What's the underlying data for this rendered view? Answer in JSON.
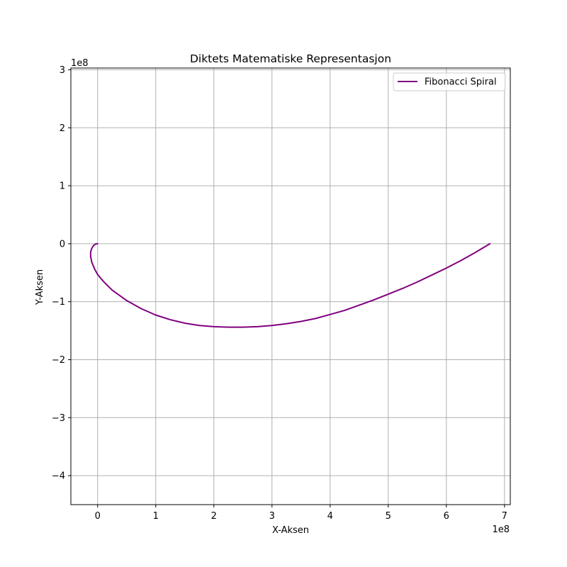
{
  "chart_data": {
    "type": "line",
    "title": "Diktets Matematiske Representasjon",
    "xlabel": "X-Aksen",
    "ylabel": "Y-Aksen",
    "x_offset_label": "1e8",
    "y_offset_label": "1e8",
    "xlim": [
      -0.46,
      7.1
    ],
    "ylim": [
      -4.5,
      3.03
    ],
    "x_ticks": [
      0,
      1,
      2,
      3,
      4,
      5,
      6,
      7
    ],
    "x_tick_labels": [
      "0",
      "1",
      "2",
      "3",
      "4",
      "5",
      "6",
      "7"
    ],
    "y_ticks": [
      -4,
      -3,
      -2,
      -1,
      0,
      1,
      2,
      3
    ],
    "y_tick_labels": [
      "−4",
      "−3",
      "−2",
      "−1",
      "0",
      "1",
      "2",
      "3"
    ],
    "grid": true,
    "legend_position": "top-right",
    "series": [
      {
        "name": "Fibonacci Spiral",
        "color": "#800080",
        "points": [
          [
            0.0,
            0.0
          ],
          [
            -0.02,
            0.0
          ],
          [
            -0.04,
            -0.01
          ],
          [
            -0.07,
            -0.03
          ],
          [
            -0.1,
            -0.08
          ],
          [
            -0.12,
            -0.14
          ],
          [
            -0.12,
            -0.22
          ],
          [
            -0.1,
            -0.32
          ],
          [
            -0.05,
            -0.44
          ],
          [
            0.0,
            -0.53
          ],
          [
            0.1,
            -0.65
          ],
          [
            0.25,
            -0.8
          ],
          [
            0.5,
            -0.98
          ],
          [
            0.75,
            -1.12
          ],
          [
            1.0,
            -1.23
          ],
          [
            1.25,
            -1.31
          ],
          [
            1.5,
            -1.37
          ],
          [
            1.75,
            -1.41
          ],
          [
            2.0,
            -1.43
          ],
          [
            2.25,
            -1.44
          ],
          [
            2.5,
            -1.44
          ],
          [
            2.75,
            -1.43
          ],
          [
            3.0,
            -1.41
          ],
          [
            3.25,
            -1.38
          ],
          [
            3.5,
            -1.34
          ],
          [
            3.75,
            -1.29
          ],
          [
            4.0,
            -1.22
          ],
          [
            4.25,
            -1.15
          ],
          [
            4.5,
            -1.06
          ],
          [
            4.75,
            -0.97
          ],
          [
            5.0,
            -0.87
          ],
          [
            5.25,
            -0.77
          ],
          [
            5.5,
            -0.66
          ],
          [
            5.75,
            -0.54
          ],
          [
            6.0,
            -0.42
          ],
          [
            6.25,
            -0.29
          ],
          [
            6.5,
            -0.15
          ],
          [
            6.75,
            0.0
          ]
        ]
      }
    ]
  }
}
